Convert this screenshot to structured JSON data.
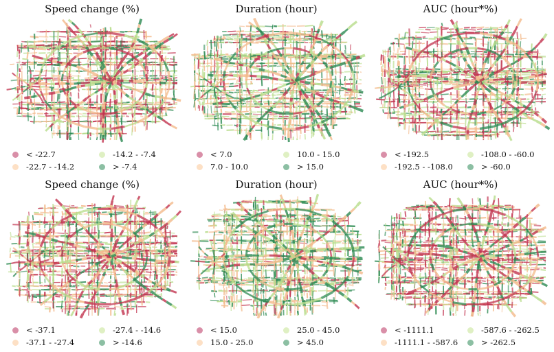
{
  "colors": {
    "c0": "#d98fa8",
    "c1": "#fde0c5",
    "c2": "#dff0c3",
    "c3": "#8cbfa3",
    "road": [
      "#c2334f",
      "#f3b98a",
      "#b7dc8a",
      "#2c8a52"
    ]
  },
  "panels": [
    {
      "title": "Speed change (%)",
      "legend": [
        "< -22.7",
        "-22.7 - -14.2",
        "-14.2 - -7.4",
        "> -7.4"
      ],
      "mix": [
        0.28,
        0.26,
        0.24,
        0.22
      ]
    },
    {
      "title": "Duration (hour)",
      "legend": [
        "< 7.0",
        "7.0 - 10.0",
        "10.0 - 15.0",
        "> 15.0"
      ],
      "mix": [
        0.14,
        0.3,
        0.26,
        0.3
      ]
    },
    {
      "title": "AUC (hour*%)",
      "legend": [
        "< -192.5",
        "-192.5 - -108.0",
        "-108.0 - -60.0",
        "> -60.0"
      ],
      "mix": [
        0.3,
        0.26,
        0.24,
        0.2
      ]
    },
    {
      "title": "Speed change (%)",
      "legend": [
        "< -37.1",
        "-37.1 - -27.4",
        "-27.4 - -14.6",
        "> -14.6"
      ],
      "mix": [
        0.34,
        0.28,
        0.22,
        0.16
      ]
    },
    {
      "title": "Duration (hour)",
      "legend": [
        "< 15.0",
        "15.0 - 25.0",
        "25.0 - 45.0",
        "> 45.0"
      ],
      "mix": [
        0.1,
        0.3,
        0.26,
        0.34
      ]
    },
    {
      "title": "AUC (hour*%)",
      "legend": [
        "< -1111.1",
        "-1111.1 - -587.6",
        "-587.6 - -262.5",
        "> -262.5"
      ],
      "mix": [
        0.36,
        0.28,
        0.2,
        0.16
      ]
    }
  ]
}
